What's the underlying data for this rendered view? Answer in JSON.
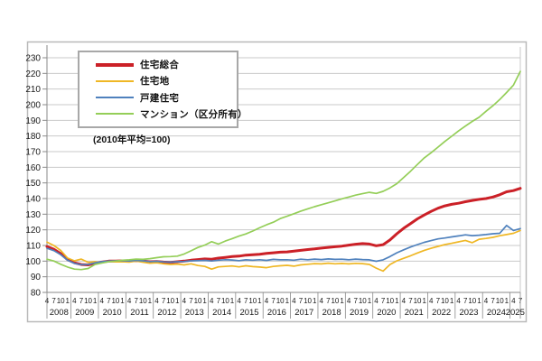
{
  "chart_data": {
    "type": "line",
    "title": "",
    "note": "(2010年平均=100)",
    "x_start": "2008-04",
    "x_end": "2025-07",
    "x_frequency_captured": "quarterly",
    "x_tick_label_cycle": [
      "4",
      "7",
      "10",
      "1"
    ],
    "year_labels": [
      "2008",
      "2009",
      "2010",
      "2011",
      "2012",
      "2013",
      "2014",
      "2015",
      "2016",
      "2017",
      "2018",
      "2019",
      "2020",
      "2021",
      "2022",
      "2023",
      "2024",
      "2025"
    ],
    "ylim": [
      80,
      230
    ],
    "y_ticks": [
      80,
      90,
      100,
      110,
      120,
      130,
      140,
      150,
      160,
      170,
      180,
      190,
      200,
      210,
      220,
      230
    ],
    "grid": "horizontal",
    "legend_position": "top-left-inside",
    "x": [
      "2008-04",
      "2008-07",
      "2008-10",
      "2009-01",
      "2009-04",
      "2009-07",
      "2009-10",
      "2010-01",
      "2010-04",
      "2010-07",
      "2010-10",
      "2011-01",
      "2011-04",
      "2011-07",
      "2011-10",
      "2012-01",
      "2012-04",
      "2012-07",
      "2012-10",
      "2013-01",
      "2013-04",
      "2013-07",
      "2013-10",
      "2014-01",
      "2014-04",
      "2014-07",
      "2014-10",
      "2015-01",
      "2015-04",
      "2015-07",
      "2015-10",
      "2016-01",
      "2016-04",
      "2016-07",
      "2016-10",
      "2017-01",
      "2017-04",
      "2017-07",
      "2017-10",
      "2018-01",
      "2018-04",
      "2018-07",
      "2018-10",
      "2019-01",
      "2019-04",
      "2019-07",
      "2019-10",
      "2020-01",
      "2020-04",
      "2020-07",
      "2020-10",
      "2021-01",
      "2021-04",
      "2021-07",
      "2021-10",
      "2022-01",
      "2022-04",
      "2022-07",
      "2022-10",
      "2023-01",
      "2023-04",
      "2023-07",
      "2023-10",
      "2024-01",
      "2024-04",
      "2024-07",
      "2024-10",
      "2025-01",
      "2025-04",
      "2025-07"
    ],
    "series": [
      {
        "name": "住宅総合",
        "color": "#cb2027",
        "width": 3,
        "values": [
          109.3,
          107.6,
          104.8,
          101.0,
          98.9,
          97.8,
          97.6,
          98.6,
          99.4,
          100.0,
          100.1,
          100.2,
          100.0,
          100.3,
          100.1,
          99.6,
          99.8,
          99.4,
          99.2,
          99.6,
          100.0,
          100.6,
          101.0,
          101.4,
          101.2,
          101.9,
          102.4,
          102.9,
          103.2,
          103.8,
          104.1,
          104.4,
          104.9,
          105.3,
          105.7,
          105.9,
          106.4,
          106.9,
          107.4,
          107.8,
          108.3,
          108.8,
          109.2,
          109.6,
          110.2,
          110.8,
          111.2,
          110.9,
          109.8,
          110.5,
          113.5,
          117.5,
          121.0,
          124.0,
          127.0,
          129.5,
          131.8,
          133.8,
          135.3,
          136.3,
          137.0,
          138.0,
          138.8,
          139.5,
          140.0,
          141.0,
          142.4,
          144.3,
          145.1,
          146.5
        ]
      },
      {
        "name": "住宅地",
        "color": "#efb725",
        "width": 1.7,
        "values": [
          112.2,
          110.0,
          106.8,
          102.0,
          100.2,
          101.3,
          99.2,
          99.6,
          99.0,
          99.8,
          99.5,
          99.6,
          99.4,
          100.0,
          99.3,
          98.7,
          99.0,
          98.3,
          97.9,
          98.1,
          97.6,
          98.3,
          97.2,
          96.6,
          94.9,
          96.3,
          96.6,
          96.9,
          96.3,
          97.0,
          96.5,
          96.2,
          95.8,
          96.6,
          97.0,
          97.3,
          96.8,
          97.6,
          98.0,
          98.4,
          98.2,
          98.7,
          98.3,
          98.5,
          98.2,
          98.6,
          98.4,
          97.9,
          95.5,
          93.6,
          97.8,
          100.2,
          101.8,
          103.4,
          105.2,
          106.9,
          108.2,
          109.4,
          110.6,
          111.4,
          112.3,
          113.2,
          111.8,
          114.0,
          114.5,
          115.2,
          116.2,
          117.0,
          117.8,
          119.6
        ]
      },
      {
        "name": "戸建住宅",
        "color": "#4f81bd",
        "width": 1.7,
        "values": [
          108.2,
          106.7,
          104.1,
          100.6,
          98.6,
          97.7,
          97.8,
          98.9,
          99.6,
          100.1,
          100.2,
          100.3,
          100.1,
          100.5,
          100.2,
          99.7,
          99.9,
          99.5,
          99.3,
          99.6,
          99.8,
          100.2,
          100.3,
          100.5,
          100.1,
          100.6,
          100.9,
          100.7,
          100.3,
          100.8,
          100.6,
          100.9,
          100.5,
          101.1,
          100.8,
          100.9,
          100.6,
          101.2,
          100.9,
          101.3,
          101.0,
          101.4,
          101.1,
          101.2,
          100.9,
          101.3,
          101.0,
          100.8,
          99.9,
          100.8,
          102.9,
          105.3,
          107.2,
          109.0,
          110.6,
          112.0,
          113.1,
          114.2,
          114.8,
          115.5,
          116.1,
          116.8,
          116.3,
          116.6,
          117.0,
          117.5,
          117.8,
          122.8,
          119.6,
          120.8
        ]
      },
      {
        "name": "マンション（区分所有）",
        "color": "#94ce58",
        "width": 1.7,
        "values": [
          101.2,
          100.1,
          98.0,
          96.2,
          94.9,
          94.6,
          95.3,
          97.9,
          98.8,
          99.6,
          100.0,
          100.6,
          100.8,
          101.3,
          101.1,
          101.6,
          102.2,
          102.8,
          102.9,
          103.2,
          104.6,
          106.6,
          108.7,
          110.2,
          112.4,
          110.9,
          112.8,
          114.4,
          116.0,
          117.4,
          119.2,
          121.3,
          123.2,
          124.9,
          127.2,
          128.7,
          130.3,
          132.0,
          133.4,
          134.8,
          136.1,
          137.3,
          138.5,
          139.8,
          141.0,
          142.2,
          143.1,
          144.0,
          143.3,
          144.6,
          146.8,
          149.5,
          153.5,
          157.5,
          161.8,
          166.0,
          169.3,
          172.9,
          176.5,
          179.8,
          183.2,
          186.3,
          189.3,
          192.0,
          195.8,
          199.3,
          203.3,
          207.8,
          212.5,
          221.3
        ]
      }
    ]
  }
}
